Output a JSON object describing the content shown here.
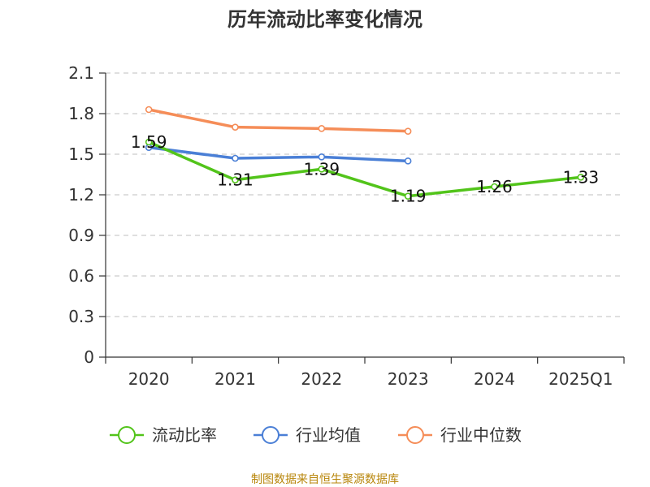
{
  "title": "历年流动比率变化情况",
  "source_note": "制图数据来自恒生聚源数据库",
  "chart_data": {
    "type": "line",
    "title": "历年流动比率变化情况",
    "categories": [
      "2020",
      "2021",
      "2022",
      "2023",
      "2024",
      "2025Q1"
    ],
    "ylim": [
      0,
      2.1
    ],
    "yticks": [
      "0",
      "0.3",
      "0.6",
      "0.9",
      "1.2",
      "1.5",
      "1.8",
      "2.1"
    ],
    "grid": true,
    "legend_position": "bottom",
    "series": [
      {
        "name": "流动比率",
        "color": "#52c41a",
        "values": [
          1.59,
          1.31,
          1.39,
          1.19,
          1.26,
          1.33
        ],
        "labels": [
          "1.59",
          "1.31",
          "1.39",
          "1.19",
          "1.26",
          "1.33"
        ]
      },
      {
        "name": "行业均值",
        "color": "#4a7fd6",
        "values": [
          1.55,
          1.47,
          1.48,
          1.45,
          null,
          null
        ]
      },
      {
        "name": "行业中位数",
        "color": "#f58d58",
        "values": [
          1.83,
          1.7,
          1.69,
          1.67,
          null,
          null
        ]
      }
    ]
  }
}
